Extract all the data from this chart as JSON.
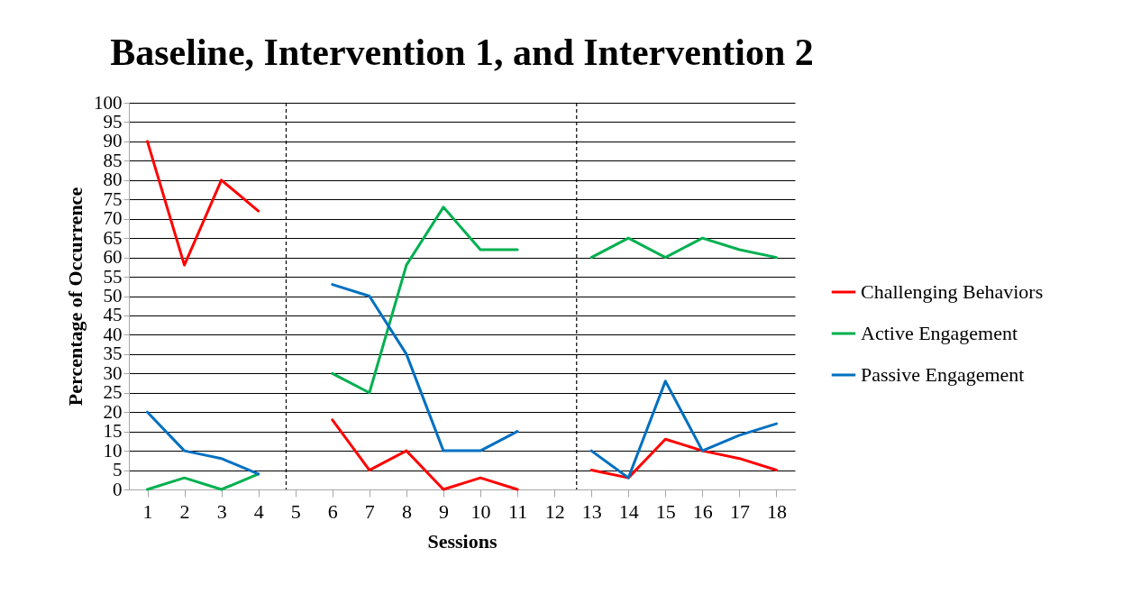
{
  "chart_data": {
    "type": "line",
    "title": "Baseline, Intervention 1, and Intervention 2",
    "xlabel": "Sessions",
    "ylabel": "Percentage of Occurrence",
    "x": [
      1,
      2,
      3,
      4,
      5,
      6,
      7,
      8,
      9,
      10,
      11,
      12,
      13,
      14,
      15,
      16,
      17,
      18
    ],
    "xlim": [
      0.5,
      18.5
    ],
    "xticks": [
      1,
      2,
      3,
      4,
      5,
      6,
      7,
      8,
      9,
      10,
      11,
      12,
      13,
      14,
      15,
      16,
      17,
      18
    ],
    "ylim": [
      0,
      100
    ],
    "yticks": [
      0,
      5,
      10,
      15,
      20,
      25,
      30,
      35,
      40,
      45,
      50,
      55,
      60,
      65,
      70,
      75,
      80,
      85,
      90,
      95,
      100
    ],
    "grid": "y",
    "legend": "right",
    "marker": "none",
    "line_style": "solid",
    "series": [
      {
        "name": "Challenging Behaviors",
        "color": "#ff0000",
        "values": [
          90,
          58,
          80,
          72,
          null,
          18,
          5,
          10,
          0,
          3,
          0,
          null,
          5,
          3,
          13,
          10,
          8,
          5
        ]
      },
      {
        "name": "Active Engagement",
        "color": "#00b050",
        "values": [
          0,
          3,
          0,
          4,
          null,
          30,
          25,
          58,
          73,
          62,
          62,
          null,
          60,
          65,
          60,
          65,
          62,
          60
        ]
      },
      {
        "name": "Passive Engagement",
        "color": "#0070c0",
        "values": [
          20,
          10,
          8,
          4,
          null,
          53,
          50,
          35,
          10,
          10,
          15,
          null,
          10,
          3,
          28,
          10,
          14,
          17
        ]
      }
    ],
    "ref_lines": [
      {
        "axis": "x",
        "value": 4.75,
        "color": "#000000",
        "line_style": "dashed"
      },
      {
        "axis": "x",
        "value": 12.6,
        "color": "#000000",
        "line_style": "dashed"
      }
    ]
  }
}
